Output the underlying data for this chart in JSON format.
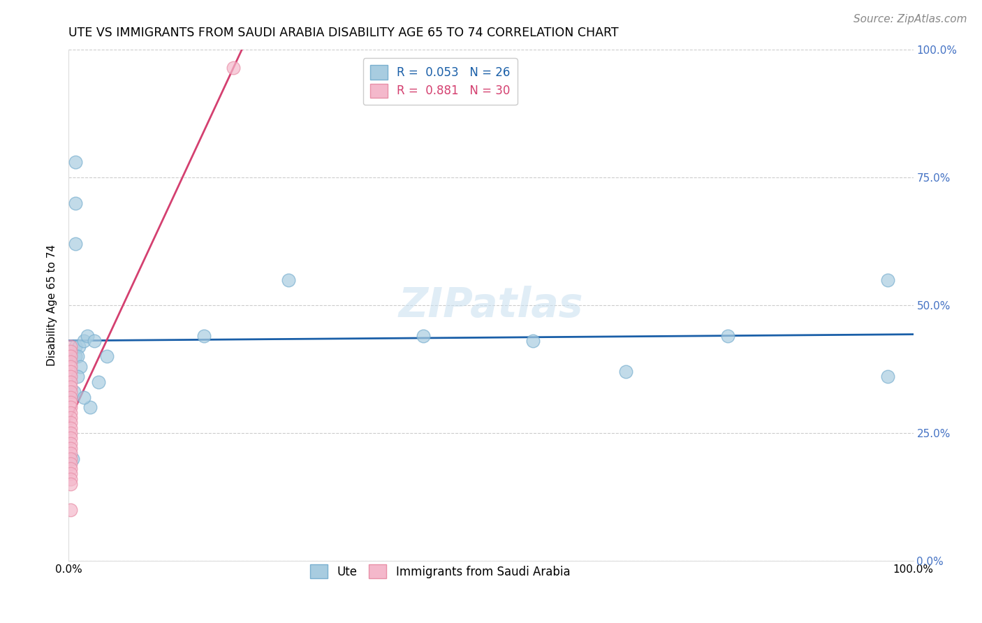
{
  "title": "UTE VS IMMIGRANTS FROM SAUDI ARABIA DISABILITY AGE 65 TO 74 CORRELATION CHART",
  "source": "Source: ZipAtlas.com",
  "ylabel": "Disability Age 65 to 74",
  "xlim": [
    0,
    1.0
  ],
  "ylim": [
    0,
    1.0
  ],
  "ytick_positions": [
    0.0,
    0.25,
    0.5,
    0.75,
    1.0
  ],
  "ytick_labels": [
    "0.0%",
    "25.0%",
    "50.0%",
    "75.0%",
    "100.0%"
  ],
  "watermark": "ZIPatlas",
  "ute_color": "#a8cce0",
  "ute_edge_color": "#7ab0d0",
  "saudi_color": "#f4b8cb",
  "saudi_edge_color": "#e890a8",
  "legend_blue_label": "R =  0.053   N = 26",
  "legend_pink_label": "R =  0.881   N = 30",
  "ute_x": [
    0.008,
    0.012,
    0.018,
    0.022,
    0.008,
    0.01,
    0.014,
    0.01,
    0.006,
    0.005,
    0.03,
    0.045,
    0.035,
    0.025,
    0.018,
    0.16,
    0.26,
    0.42,
    0.55,
    0.66,
    0.78,
    0.97,
    0.97,
    0.008,
    0.008,
    0.008
  ],
  "ute_y": [
    0.42,
    0.42,
    0.43,
    0.44,
    0.4,
    0.4,
    0.38,
    0.36,
    0.33,
    0.2,
    0.43,
    0.4,
    0.35,
    0.3,
    0.32,
    0.44,
    0.55,
    0.44,
    0.43,
    0.37,
    0.44,
    0.36,
    0.55,
    0.78,
    0.7,
    0.62
  ],
  "saudi_x": [
    0.002,
    0.002,
    0.002,
    0.002,
    0.002,
    0.002,
    0.002,
    0.002,
    0.002,
    0.002,
    0.002,
    0.002,
    0.002,
    0.002,
    0.002,
    0.002,
    0.002,
    0.002,
    0.002,
    0.002,
    0.002,
    0.002,
    0.002,
    0.002,
    0.002,
    0.002,
    0.002,
    0.002,
    0.002,
    0.195
  ],
  "saudi_y": [
    0.42,
    0.41,
    0.4,
    0.39,
    0.38,
    0.37,
    0.36,
    0.35,
    0.34,
    0.33,
    0.32,
    0.31,
    0.3,
    0.29,
    0.28,
    0.27,
    0.26,
    0.25,
    0.24,
    0.23,
    0.22,
    0.21,
    0.2,
    0.19,
    0.18,
    0.17,
    0.16,
    0.15,
    0.1,
    0.965
  ],
  "ute_line_color": "#1a5fa8",
  "saudi_line_color": "#d44070",
  "title_fontsize": 12.5,
  "axis_label_fontsize": 11,
  "tick_fontsize": 11,
  "legend_fontsize": 12,
  "source_fontsize": 11,
  "watermark_fontsize": 42,
  "watermark_color": "#c8dff0",
  "watermark_alpha": 0.55,
  "grid_color": "#cccccc",
  "grid_style": "--",
  "background_color": "#ffffff",
  "right_tick_color": "#4472c4"
}
